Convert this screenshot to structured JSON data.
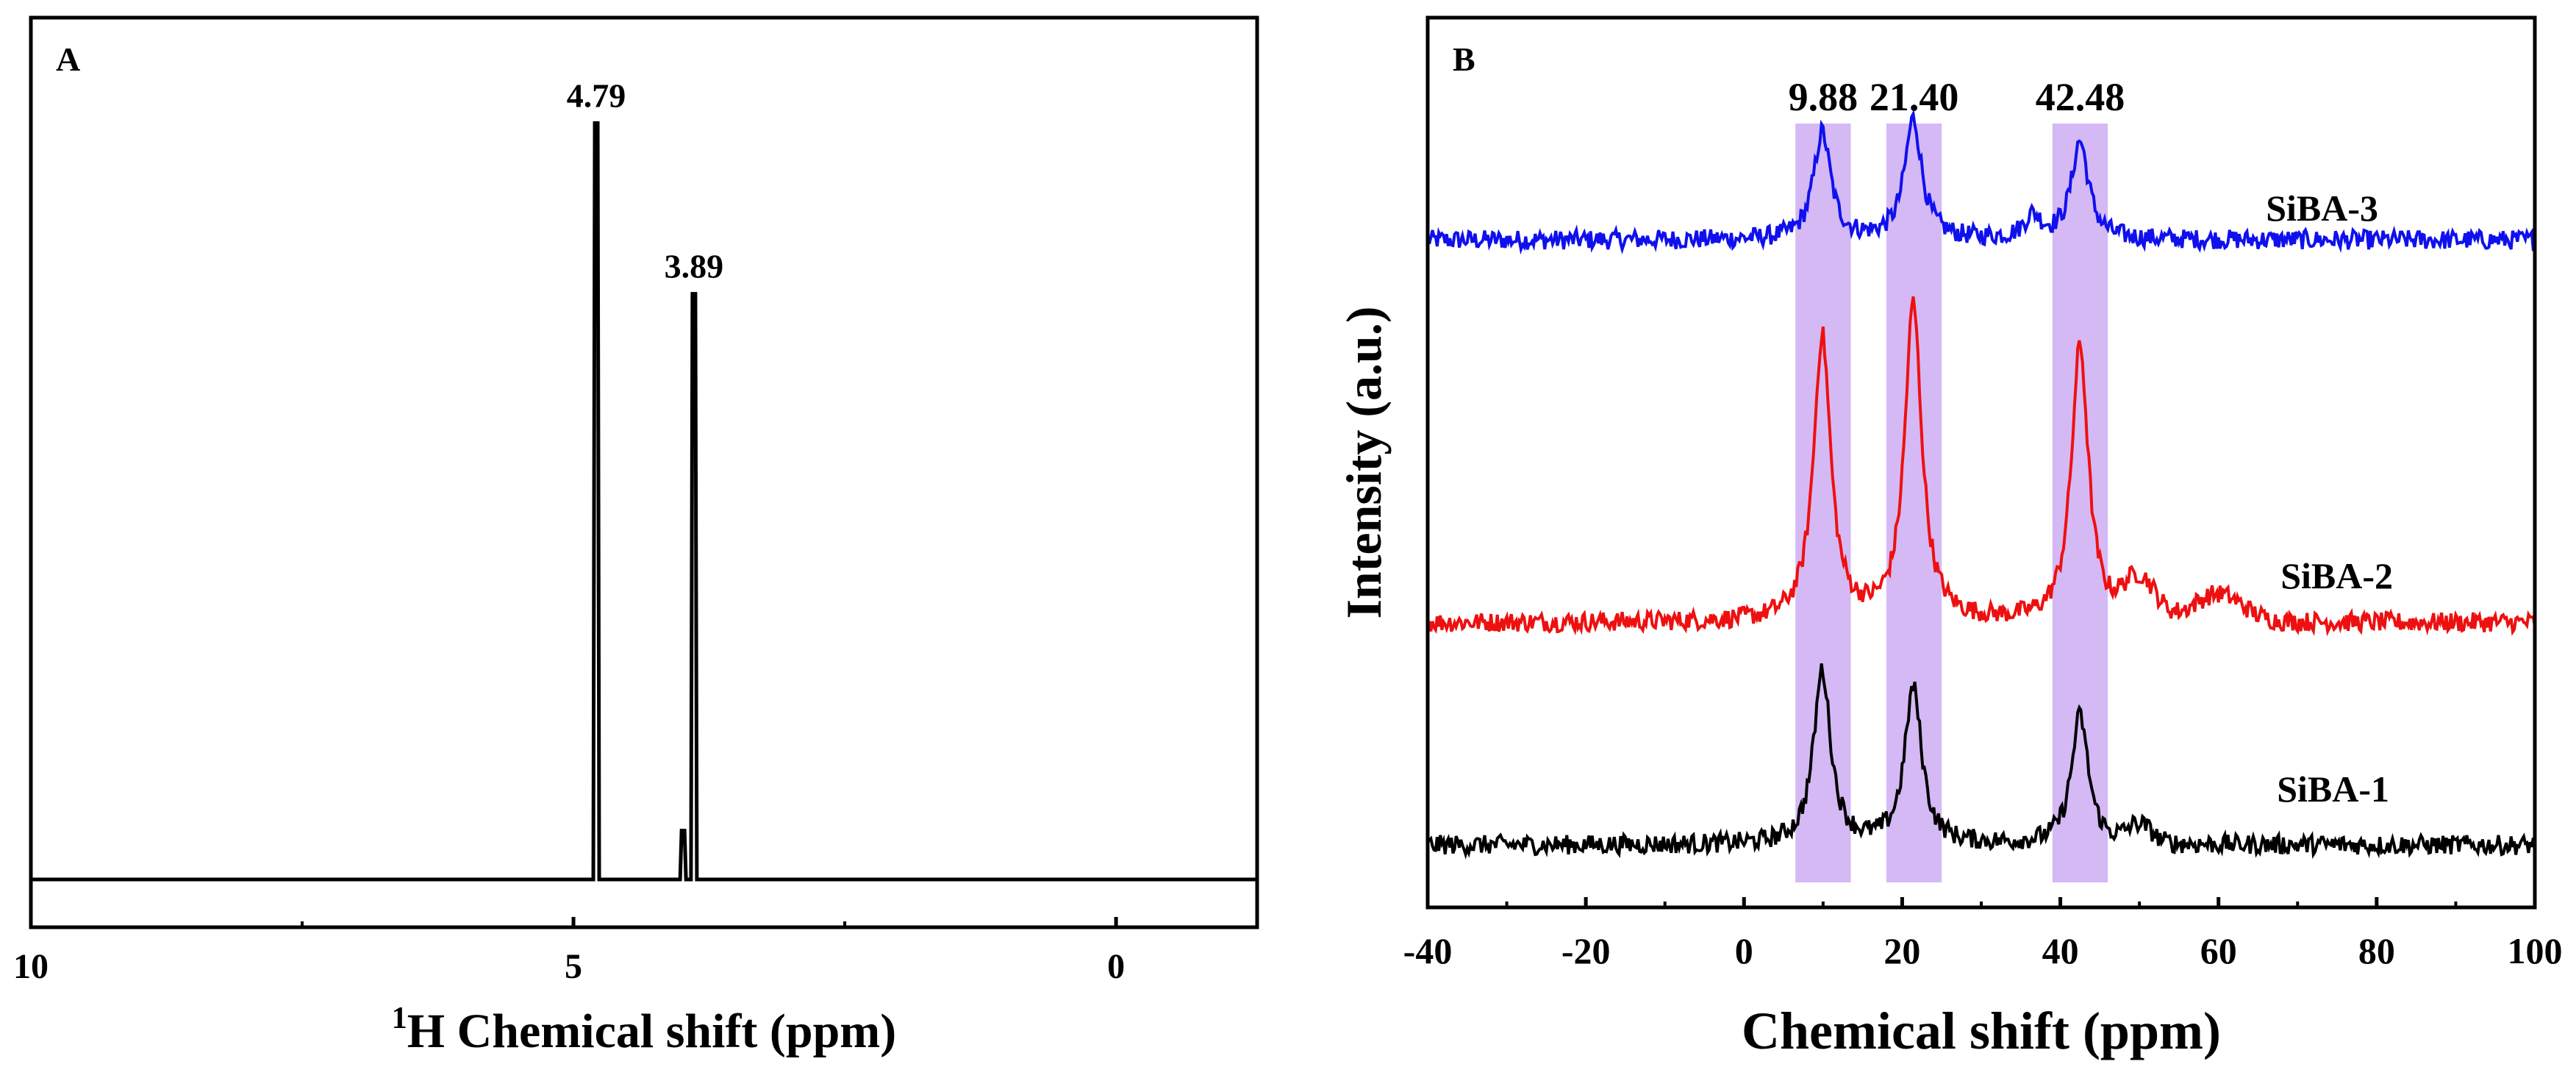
{
  "chart_data": [
    {
      "panel": "A",
      "type": "line",
      "xlabel_sup": "1",
      "xlabel": "H Chemical shift (ppm)",
      "ylabel": "",
      "xlim": [
        10,
        -1.3
      ],
      "x_ticks": [
        10,
        5,
        0
      ],
      "x_tick_labels": [
        "10",
        "5",
        "0"
      ],
      "x_minor_ticks": [
        7.5,
        2.5
      ],
      "baseline": 0.0,
      "ylim": [
        -0.05,
        1.0
      ],
      "peaks": [
        {
          "shift": 4.79,
          "height": 0.93,
          "label": "4.79"
        },
        {
          "shift": 3.89,
          "height": 0.72,
          "label": "3.89"
        },
        {
          "shift": 3.99,
          "height": 0.06,
          "label": ""
        }
      ],
      "color": "#000000"
    },
    {
      "panel": "B",
      "type": "line",
      "xlabel": "Chemical shift (ppm)",
      "ylabel": "Intensity (a.u.)",
      "xlim": [
        -40,
        100
      ],
      "x_ticks": [
        -40,
        -20,
        0,
        20,
        40,
        60,
        80,
        100
      ],
      "x_tick_labels": [
        "-40",
        "-20",
        "0",
        "20",
        "40",
        "60",
        "80",
        "100"
      ],
      "ylim": [
        0,
        10
      ],
      "highlight_color": "#c9a8f2",
      "highlight_bands": [
        {
          "from": 6.5,
          "to": 13.5,
          "label": "9.88"
        },
        {
          "from": 18,
          "to": 25,
          "label": "21.40"
        },
        {
          "from": 39,
          "to": 46,
          "label": "42.48"
        }
      ],
      "series": [
        {
          "name": "SiBA-3",
          "color": "#1010ee",
          "baseline": 7.5,
          "peaks": [
            {
              "x": 9.88,
              "h": 1.2
            },
            {
              "x": 21.4,
              "h": 1.35
            },
            {
              "x": 42.48,
              "h": 1.1
            },
            {
              "x": 36.5,
              "h": 0.25
            }
          ],
          "bumps": []
        },
        {
          "name": "SiBA-2",
          "color": "#ee1010",
          "baseline": 3.2,
          "peaks": [
            {
              "x": 9.88,
              "h": 3.2
            },
            {
              "x": 21.4,
              "h": 3.55
            },
            {
              "x": 42.48,
              "h": 3.1
            }
          ],
          "bumps": [
            {
              "x": 50,
              "h": 0.45,
              "w": 2
            },
            {
              "x": 60,
              "h": 0.3,
              "w": 3
            }
          ]
        },
        {
          "name": "SiBA-1",
          "color": "#000000",
          "baseline": 0.7,
          "peaks": [
            {
              "x": 9.88,
              "h": 1.95
            },
            {
              "x": 21.4,
              "h": 1.75
            },
            {
              "x": 42.48,
              "h": 1.45
            }
          ],
          "bumps": [
            {
              "x": 50,
              "h": 0.2,
              "w": 1.5
            }
          ]
        }
      ]
    }
  ]
}
